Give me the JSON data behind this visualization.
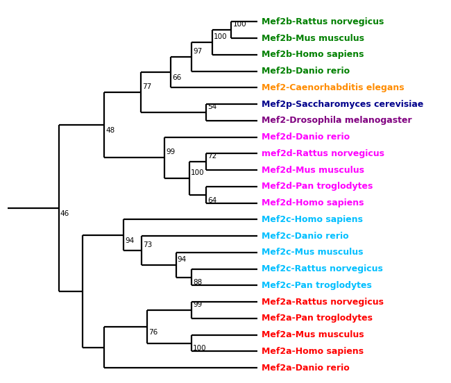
{
  "taxa": [
    {
      "name": "Mef2b-Rattus norvegicus",
      "y": 22,
      "color": "#008000"
    },
    {
      "name": "Mef2b-Mus musculus",
      "y": 21,
      "color": "#008000"
    },
    {
      "name": "Mef2b-Homo sapiens",
      "y": 20,
      "color": "#008000"
    },
    {
      "name": "Mef2b-Danio rerio",
      "y": 19,
      "color": "#008000"
    },
    {
      "name": "Mef2-Caenorhabditis elegans",
      "y": 18,
      "color": "#FF8C00"
    },
    {
      "name": "Mef2p-Saccharomyces cerevisiae",
      "y": 17,
      "color": "#00008B"
    },
    {
      "name": "Mef2-Drosophila melanogaster",
      "y": 16,
      "color": "#800080"
    },
    {
      "name": "Mef2d-Danio rerio",
      "y": 15,
      "color": "#FF00FF"
    },
    {
      "name": "mef2d-Rattus norvegicus",
      "y": 14,
      "color": "#FF00FF"
    },
    {
      "name": "Mef2d-Mus musculus",
      "y": 13,
      "color": "#FF00FF"
    },
    {
      "name": "Mef2d-Pan troglodytes",
      "y": 12,
      "color": "#FF00FF"
    },
    {
      "name": "Mef2d-Homo sapiens",
      "y": 11,
      "color": "#FF00FF"
    },
    {
      "name": "Mef2c-Homo sapiens",
      "y": 10,
      "color": "#00BFFF"
    },
    {
      "name": "Mef2c-Danio rerio",
      "y": 9,
      "color": "#00BFFF"
    },
    {
      "name": "Mef2c-Mus musculus",
      "y": 8,
      "color": "#00BFFF"
    },
    {
      "name": "Mef2c-Rattus norvegicus",
      "y": 7,
      "color": "#00BFFF"
    },
    {
      "name": "Mef2c-Pan troglodytes",
      "y": 6,
      "color": "#00BFFF"
    },
    {
      "name": "Mef2a-Rattus norvegicus",
      "y": 5,
      "color": "#FF0000"
    },
    {
      "name": "Mef2a-Pan troglodytes",
      "y": 4,
      "color": "#FF0000"
    },
    {
      "name": "Mef2a-Mus musculus",
      "y": 3,
      "color": "#FF0000"
    },
    {
      "name": "Mef2a-Homo sapiens",
      "y": 2,
      "color": "#FF0000"
    },
    {
      "name": "Mef2a-Danio rerio",
      "y": 1,
      "color": "#FF0000"
    }
  ],
  "background_color": "#ffffff",
  "line_color": "#000000",
  "font_size": 9.0,
  "label_font_size": 7.5,
  "lw": 1.6
}
